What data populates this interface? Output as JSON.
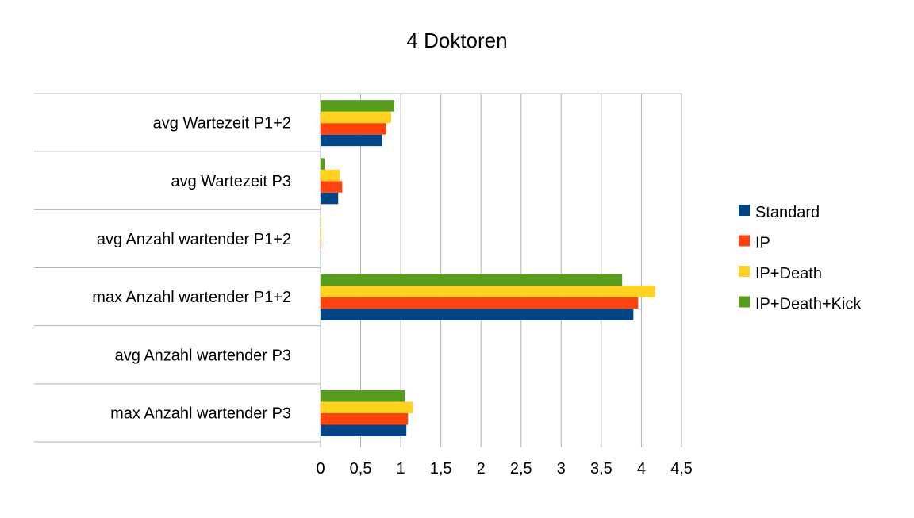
{
  "chart_data": {
    "type": "bar",
    "orientation": "horizontal",
    "title": "4 Doktoren",
    "xlabel": "",
    "ylabel": "",
    "categories": [
      "avg Wartezeit P1+2",
      "avg Wartezeit P3",
      "avg Anzahl wartender P1+2",
      "max Anzahl wartender P1+2",
      "avg Anzahl wartender P3",
      "max Anzahl wartender P3"
    ],
    "series": [
      {
        "name": "Standard",
        "color": "#004586",
        "values": [
          0.77,
          0.22,
          0.01,
          3.9,
          0,
          1.07
        ]
      },
      {
        "name": "IP",
        "color": "#FF420E",
        "values": [
          0.82,
          0.27,
          0.01,
          3.96,
          0,
          1.09
        ]
      },
      {
        "name": "IP+Death",
        "color": "#FFD320",
        "values": [
          0.88,
          0.24,
          0.01,
          4.17,
          0,
          1.15
        ]
      },
      {
        "name": "IP+Death+Kick",
        "color": "#579D1C",
        "values": [
          0.92,
          0.05,
          0.01,
          3.76,
          0,
          1.05
        ]
      }
    ],
    "xlim": [
      0,
      4.5
    ],
    "xticks": [
      "0",
      "0,5",
      "1",
      "1,5",
      "2",
      "2,5",
      "3",
      "3,5",
      "4",
      "4,5"
    ],
    "grid": true,
    "legend_position": "right"
  }
}
